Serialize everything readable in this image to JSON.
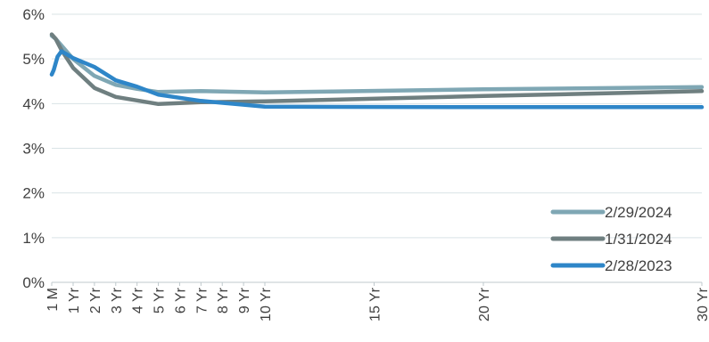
{
  "chart_data": {
    "type": "line",
    "y_unit": "%",
    "ylim": [
      0,
      6
    ],
    "y_ticks": [
      0,
      1,
      2,
      3,
      4,
      5,
      6
    ],
    "y_tick_labels": [
      "0%",
      "1%",
      "2%",
      "3%",
      "4%",
      "5%",
      "6%"
    ],
    "grid": "horizontal",
    "legend_position": "bottom-right",
    "x_ticks": [
      {
        "label": "1 M",
        "months": 1
      },
      {
        "label": "1 Yr",
        "months": 12
      },
      {
        "label": "2 Yr",
        "months": 24
      },
      {
        "label": "3 Yr",
        "months": 36
      },
      {
        "label": "4 Yr",
        "months": 48
      },
      {
        "label": "5 Yr",
        "months": 60
      },
      {
        "label": "6 Yr",
        "months": 72
      },
      {
        "label": "7 Yr",
        "months": 84
      },
      {
        "label": "8 Yr",
        "months": 96
      },
      {
        "label": "9 Yr",
        "months": 108
      },
      {
        "label": "10 Yr",
        "months": 120
      },
      {
        "label": "15 Yr",
        "months": 180
      },
      {
        "label": "20 Yr",
        "months": 240
      },
      {
        "label": "30 Yr",
        "months": 360
      }
    ],
    "series": [
      {
        "name": "2/29/2024",
        "color": "#7fa7b4",
        "points": [
          [
            1,
            5.52
          ],
          [
            3,
            5.45
          ],
          [
            6,
            5.3
          ],
          [
            12,
            5.0
          ],
          [
            24,
            4.62
          ],
          [
            36,
            4.42
          ],
          [
            48,
            4.33
          ],
          [
            60,
            4.26
          ],
          [
            84,
            4.28
          ],
          [
            120,
            4.25
          ],
          [
            240,
            4.32
          ],
          [
            360,
            4.37
          ]
        ]
      },
      {
        "name": "1/31/2024",
        "color": "#6f7f80",
        "points": [
          [
            1,
            5.55
          ],
          [
            3,
            5.45
          ],
          [
            6,
            5.2
          ],
          [
            12,
            4.8
          ],
          [
            24,
            4.35
          ],
          [
            36,
            4.15
          ],
          [
            48,
            4.07
          ],
          [
            60,
            3.99
          ],
          [
            84,
            4.03
          ],
          [
            120,
            4.05
          ],
          [
            240,
            4.17
          ],
          [
            360,
            4.28
          ]
        ]
      },
      {
        "name": "2/28/2023",
        "color": "#2e86c8",
        "points": [
          [
            1,
            4.65
          ],
          [
            2,
            4.75
          ],
          [
            4,
            5.05
          ],
          [
            6,
            5.17
          ],
          [
            12,
            5.02
          ],
          [
            24,
            4.82
          ],
          [
            36,
            4.52
          ],
          [
            48,
            4.38
          ],
          [
            60,
            4.2
          ],
          [
            84,
            4.06
          ],
          [
            120,
            3.93
          ],
          [
            240,
            3.92
          ],
          [
            360,
            3.92
          ]
        ]
      }
    ]
  }
}
